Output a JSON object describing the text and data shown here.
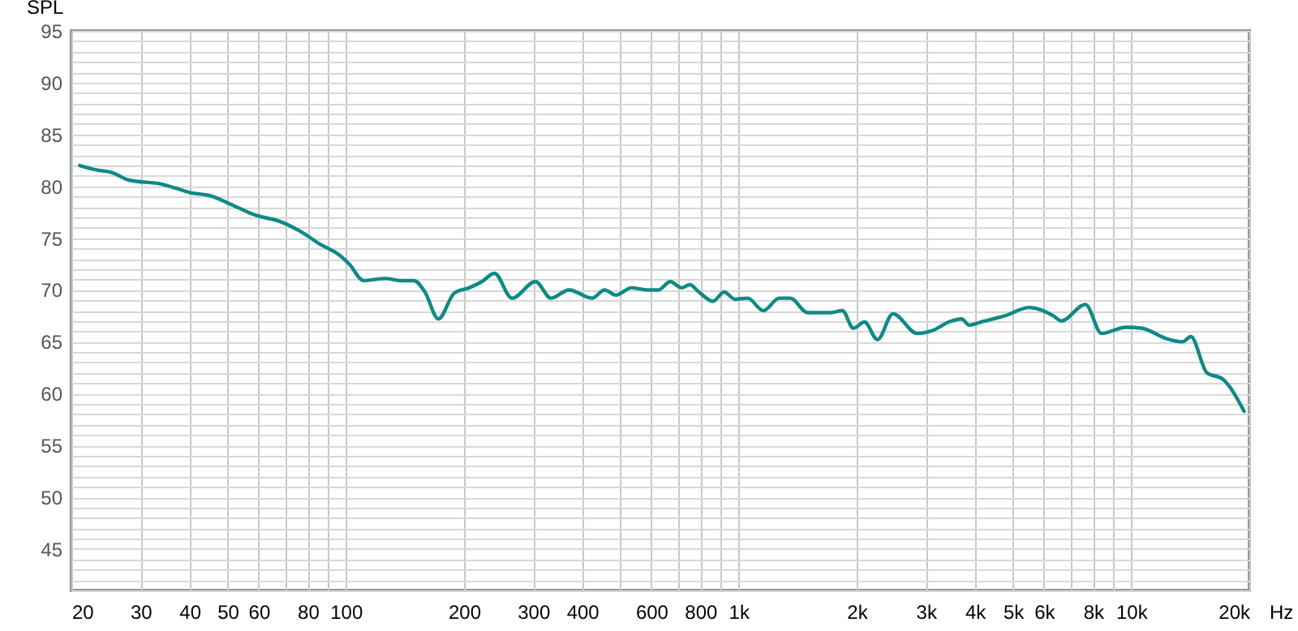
{
  "chart_data": {
    "type": "line",
    "ylabel": "SPL",
    "log": "x",
    "grid": true,
    "marker": "none",
    "line_style": "solid",
    "xlim": [
      20,
      20000
    ],
    "ylim": [
      41,
      95
    ],
    "xticks": [
      20,
      30,
      40,
      50,
      60,
      {
        "value": 70,
        "label": null
      },
      80,
      {
        "value": 90,
        "label": null
      },
      100,
      200,
      300,
      400,
      {
        "value": 500,
        "label": null
      },
      600,
      {
        "value": 700,
        "label": null
      },
      800,
      {
        "value": 900,
        "label": null
      },
      {
        "value": 1000,
        "label": "1k"
      },
      {
        "value": 2000,
        "label": "2k"
      },
      {
        "value": 3000,
        "label": "3k"
      },
      {
        "value": 4000,
        "label": "4k"
      },
      {
        "value": 5000,
        "label": "5k"
      },
      {
        "value": 6000,
        "label": "6k"
      },
      {
        "value": 7000,
        "label": null
      },
      {
        "value": 8000,
        "label": "8k"
      },
      {
        "value": 9000,
        "label": null
      },
      {
        "value": 10000,
        "label": "10k"
      },
      {
        "value": 20000,
        "label": "20k"
      }
    ],
    "xlabel": "Hz",
    "yticks": [
      {
        "value": 41,
        "label": null
      },
      {
        "value": 42,
        "label": null
      },
      {
        "value": 43,
        "label": null
      },
      {
        "value": 44,
        "label": null
      },
      45,
      {
        "value": 46,
        "label": null
      },
      {
        "value": 47,
        "label": null
      },
      {
        "value": 48,
        "label": null
      },
      {
        "value": 49,
        "label": null
      },
      50,
      {
        "value": 51,
        "label": null
      },
      {
        "value": 52,
        "label": null
      },
      {
        "value": 53,
        "label": null
      },
      {
        "value": 54,
        "label": null
      },
      55,
      {
        "value": 56,
        "label": null
      },
      {
        "value": 57,
        "label": null
      },
      {
        "value": 58,
        "label": null
      },
      {
        "value": 59,
        "label": null
      },
      60,
      {
        "value": 61,
        "label": null
      },
      {
        "value": 62,
        "label": null
      },
      {
        "value": 63,
        "label": null
      },
      {
        "value": 64,
        "label": null
      },
      65,
      {
        "value": 66,
        "label": null
      },
      {
        "value": 67,
        "label": null
      },
      {
        "value": 68,
        "label": null
      },
      {
        "value": 69,
        "label": null
      },
      70,
      {
        "value": 71,
        "label": null
      },
      {
        "value": 72,
        "label": null
      },
      {
        "value": 73,
        "label": null
      },
      {
        "value": 74,
        "label": null
      },
      75,
      {
        "value": 76,
        "label": null
      },
      {
        "value": 77,
        "label": null
      },
      {
        "value": 78,
        "label": null
      },
      {
        "value": 79,
        "label": null
      },
      80,
      {
        "value": 81,
        "label": null
      },
      {
        "value": 82,
        "label": null
      },
      {
        "value": 83,
        "label": null
      },
      {
        "value": 84,
        "label": null
      },
      85,
      {
        "value": 86,
        "label": null
      },
      {
        "value": 87,
        "label": null
      },
      {
        "value": 88,
        "label": null
      },
      {
        "value": 89,
        "label": null
      },
      90,
      {
        "value": 91,
        "label": null
      },
      {
        "value": 92,
        "label": null
      },
      {
        "value": 93,
        "label": null
      },
      {
        "value": 94,
        "label": null
      },
      95
    ],
    "x": [
      21,
      23,
      25.5,
      28,
      34,
      37,
      40,
      45,
      52,
      59,
      68,
      77,
      86,
      96,
      102,
      111,
      126,
      138,
      149,
      159,
      172,
      189,
      206,
      222,
      239,
      265,
      304,
      333,
      370,
      424,
      456,
      487,
      534,
      586,
      626,
      670,
      717,
      751,
      793,
      861,
      919,
      980,
      1055,
      1157,
      1270,
      1355,
      1500,
      1707,
      1839,
      1962,
      2094,
      2260,
      2474,
      2850,
      3130,
      3430,
      3700,
      3870,
      4140,
      4770,
      5500,
      6340,
      6640,
      7650,
      8410,
      9700,
      10670,
      12300,
      13530,
      14190,
      15600,
      17100,
      19400
    ],
    "series": [
      {
        "color": "#0e8a84",
        "values": [
          82.0,
          81.6,
          81.3,
          80.6,
          80.2,
          79.8,
          79.4,
          79.1,
          78.1,
          77.2,
          76.6,
          75.6,
          74.4,
          73.4,
          72.5,
          70.9,
          71.1,
          70.9,
          70.9,
          69.8,
          67.2,
          69.7,
          70.2,
          70.8,
          71.6,
          69.2,
          70.8,
          69.2,
          70.0,
          69.2,
          70.0,
          69.5,
          70.2,
          70.0,
          70.0,
          70.8,
          70.2,
          70.5,
          69.8,
          68.9,
          69.8,
          69.1,
          69.2,
          68.0,
          69.2,
          69.2,
          67.8,
          67.8,
          68.0,
          66.3,
          66.9,
          65.2,
          67.7,
          65.8,
          66.1,
          66.9,
          67.2,
          66.6,
          66.9,
          67.5,
          68.3,
          67.5,
          67.0,
          68.6,
          65.8,
          66.4,
          66.3,
          65.3,
          65.0,
          65.5,
          62.0,
          61.4,
          58.3
        ]
      }
    ]
  }
}
